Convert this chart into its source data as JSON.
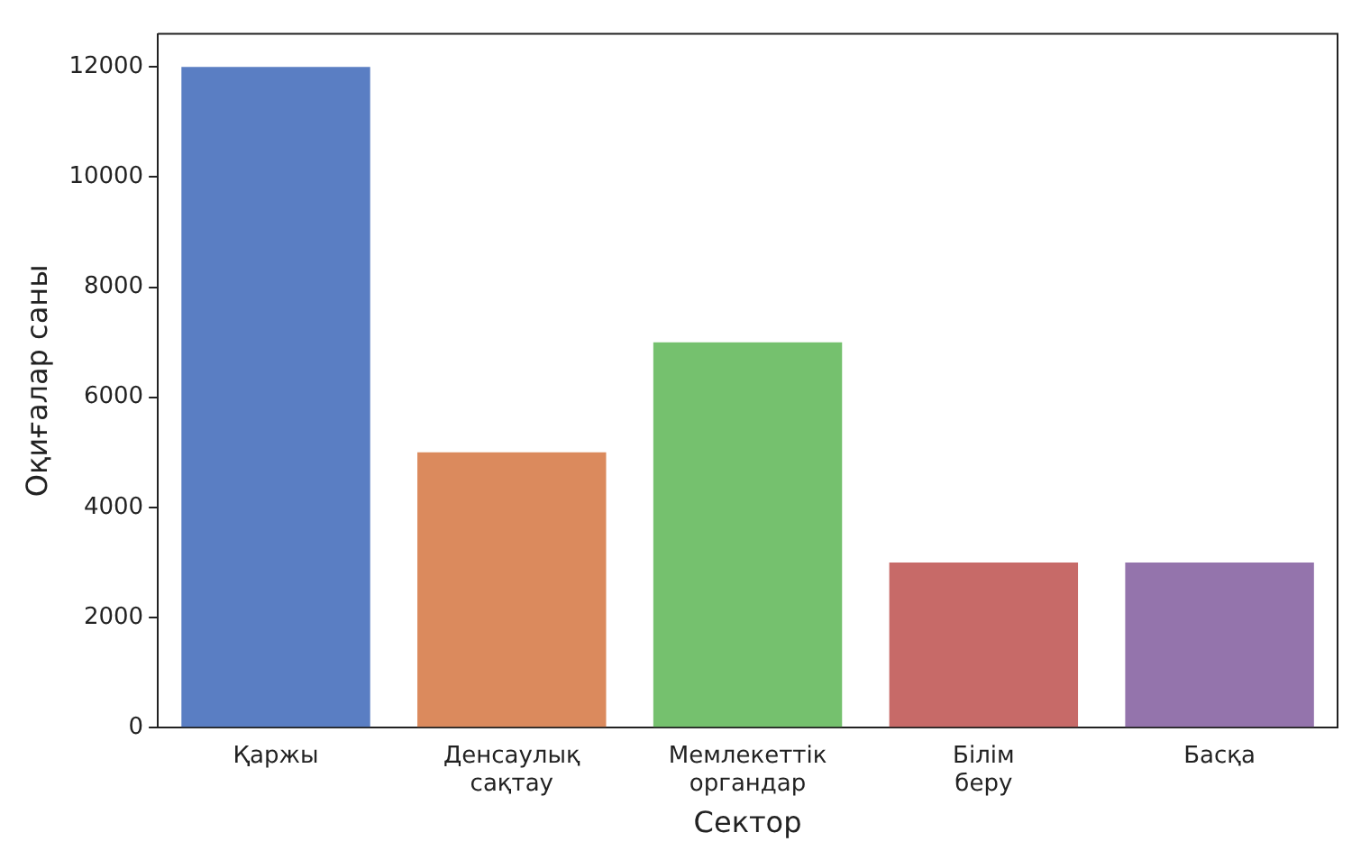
{
  "chart_data": {
    "type": "bar",
    "xlabel": "Сектор",
    "ylabel": "Оқиғалар саны",
    "categories": [
      "Қаржы",
      "Денсаулық сақтау",
      "Мемлекеттік органдар",
      "Білім беру",
      "Басқа"
    ],
    "values": [
      12000,
      5000,
      7000,
      3000,
      3000
    ],
    "colors": [
      "#5a7ec3",
      "#db8a5d",
      "#75c16e",
      "#c76a68",
      "#9474ac"
    ],
    "ylim": [
      0,
      12600
    ],
    "yticks": [
      0,
      2000,
      4000,
      6000,
      8000,
      10000,
      12000
    ],
    "grid": false,
    "legend": false
  }
}
